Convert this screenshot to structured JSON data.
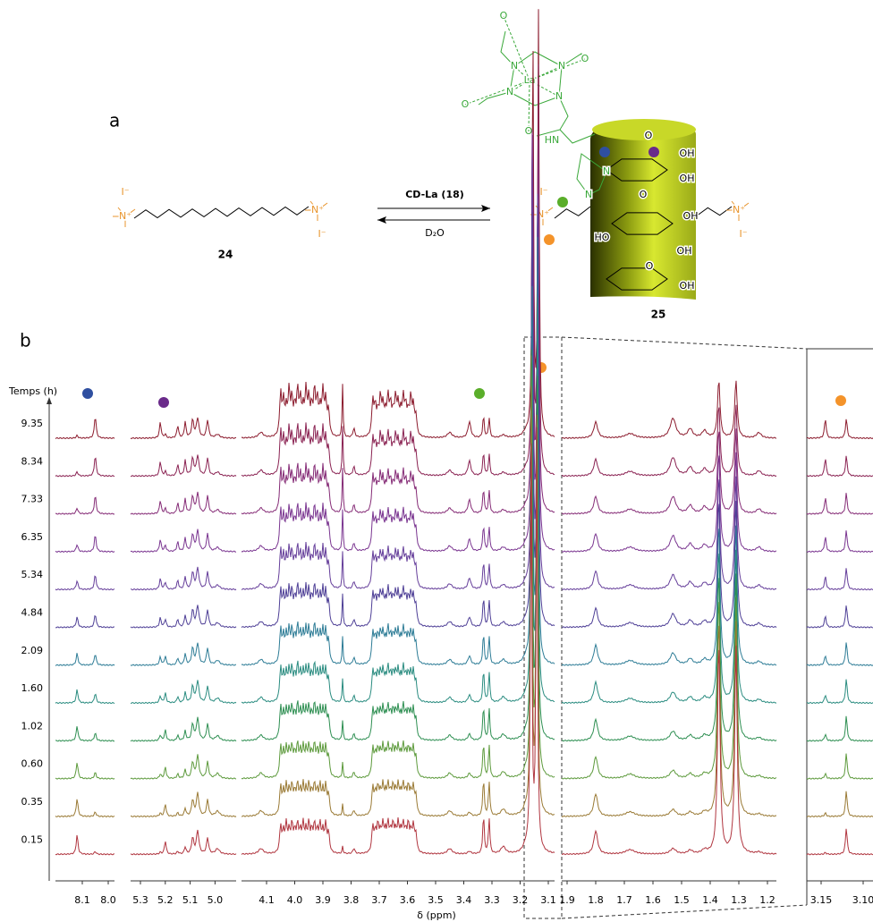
{
  "panel_a": {
    "label": "a",
    "compound_left": "24",
    "compound_right": "25",
    "reagent": "CD-La (18)",
    "solvent": "D₂O",
    "atoms": [
      "I⁻",
      "N⁺",
      "I⁻",
      "N⁺",
      "I⁻",
      "N⁺",
      "N⁺",
      "I⁻",
      "La",
      "N",
      "N",
      "N",
      "N",
      "O",
      "O",
      "O",
      "O",
      "HN",
      "O",
      "OH",
      "OH",
      "OH",
      "OH",
      "HO",
      "OH",
      "O",
      "O",
      "N",
      "N"
    ]
  },
  "panel_b": {
    "label": "b",
    "y_title": "Temps (h)",
    "x_label": "δ (ppm)",
    "times": [
      "9.35",
      "8.34",
      "7.33",
      "6.35",
      "5.34",
      "4.84",
      "2.09",
      "1.60",
      "1.02",
      "0.60",
      "0.35",
      "0.15"
    ],
    "trace_colors": [
      "#8c1c2e",
      "#8a2252",
      "#852b76",
      "#7a3590",
      "#653e9a",
      "#4e3f96",
      "#2d7c96",
      "#2a8c80",
      "#2e8f52",
      "#5d9a3c",
      "#9a7a35",
      "#b0353f"
    ],
    "x_ticks": [
      [
        "8.1",
        "8.0"
      ],
      [
        "5.3",
        "5.2",
        "5.1",
        "5.0"
      ],
      [
        "4.1",
        "4.0",
        "3.9",
        "3.8",
        "3.7",
        "3.6",
        "3.5",
        "3.4",
        "3.3",
        "3.2",
        "3.1"
      ],
      [
        "1.9",
        "1.8",
        "1.7",
        "1.6",
        "1.5",
        "1.4",
        "1.3",
        "1.2"
      ],
      [
        "3.15",
        "3.10"
      ]
    ]
  }
}
